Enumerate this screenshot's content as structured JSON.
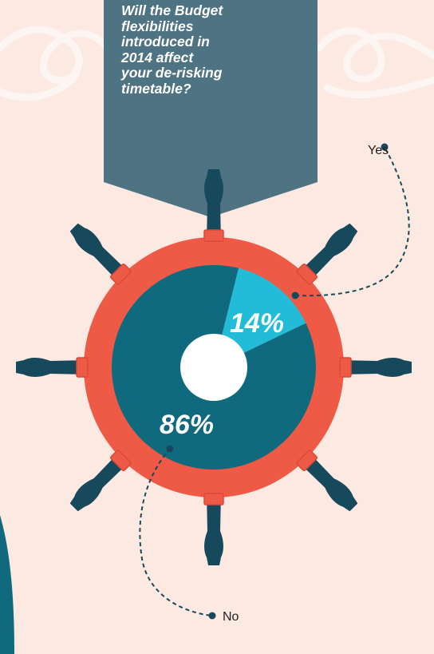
{
  "question": "Will the Budget\nflexibilities\nintroduced in\n2014 affect\nyour de-risking\ntimetable?",
  "colors": {
    "background": "#fbe9e2",
    "banner": "#4e7383",
    "wheel_ring": "#ef5a46",
    "spoke": "#17495c",
    "slice_no": "#106a7e",
    "slice_yes": "#22bcd8",
    "hub": "#ffffff"
  },
  "chart_data": {
    "type": "pie",
    "title": "Will the Budget flexibilities introduced in 2014 affect your de-risking timetable?",
    "slices": [
      {
        "label": "Yes",
        "value": 14,
        "display": "14%",
        "color": "#22bcd8"
      },
      {
        "label": "No",
        "value": 86,
        "display": "86%",
        "color": "#106a7e"
      }
    ]
  }
}
